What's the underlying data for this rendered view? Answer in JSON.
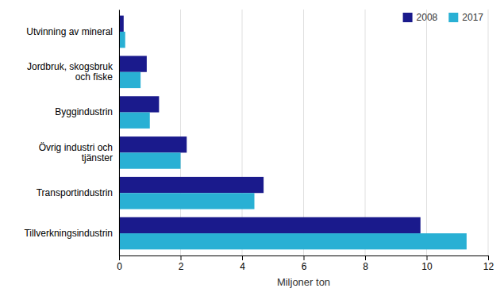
{
  "chart_data": {
    "type": "bar",
    "orientation": "horizontal",
    "categories": [
      "Tillverkningsindustrin",
      "Transportindustrin",
      "Övrig industri och\ntjänster",
      "Byggindustrin",
      "Jordbruk, skogsbruk\noch fiske",
      "Utvinning av mineral"
    ],
    "series": [
      {
        "name": "2008",
        "color": "#1a1a8c",
        "values": [
          9.8,
          4.7,
          2.2,
          1.3,
          0.9,
          0.15
        ]
      },
      {
        "name": "2017",
        "color": "#29b0d4",
        "values": [
          11.3,
          4.4,
          2.0,
          1.0,
          0.7,
          0.2
        ]
      }
    ],
    "xlabel": "Miljoner ton",
    "xlim": [
      0,
      12
    ],
    "xticks": [
      0,
      2,
      4,
      6,
      8,
      10,
      12
    ],
    "grid": true,
    "legend": "upper right"
  }
}
